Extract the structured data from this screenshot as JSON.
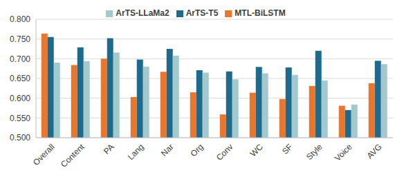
{
  "chart_data": {
    "type": "bar",
    "categories": [
      "Overall",
      "Content",
      "PA",
      "Lang",
      "Nar",
      "Org",
      "Conv",
      "WC",
      "SF",
      "Style",
      "Voice",
      "AVG"
    ],
    "series": [
      {
        "name": "MTL-BiLSTM",
        "color": "#E8762D",
        "values": [
          0.764,
          0.684,
          0.7,
          0.603,
          0.667,
          0.615,
          0.559,
          0.614,
          0.598,
          0.631,
          0.581,
          0.638
        ]
      },
      {
        "name": "ArTS-T5",
        "color": "#1D6A8C",
        "values": [
          0.755,
          0.729,
          0.752,
          0.698,
          0.725,
          0.671,
          0.668,
          0.679,
          0.678,
          0.72,
          0.57,
          0.695
        ]
      },
      {
        "name": "ArTS-LLaMa2",
        "color": "#A3C9CC",
        "values": [
          0.69,
          0.694,
          0.716,
          0.68,
          0.708,
          0.665,
          0.648,
          0.663,
          0.659,
          0.645,
          0.584,
          0.686
        ]
      }
    ],
    "ylim": [
      0.5,
      0.8
    ],
    "yticks": [
      {
        "value": 0.5,
        "label": "0.500"
      },
      {
        "value": 0.55,
        "label": "0.550"
      },
      {
        "value": 0.6,
        "label": "0.600"
      },
      {
        "value": 0.65,
        "label": "0.650"
      },
      {
        "value": 0.7,
        "label": "0.700"
      },
      {
        "value": 0.75,
        "label": "0.750"
      },
      {
        "value": 0.8,
        "label": "0.800"
      }
    ],
    "grid": true,
    "legend": "top"
  }
}
